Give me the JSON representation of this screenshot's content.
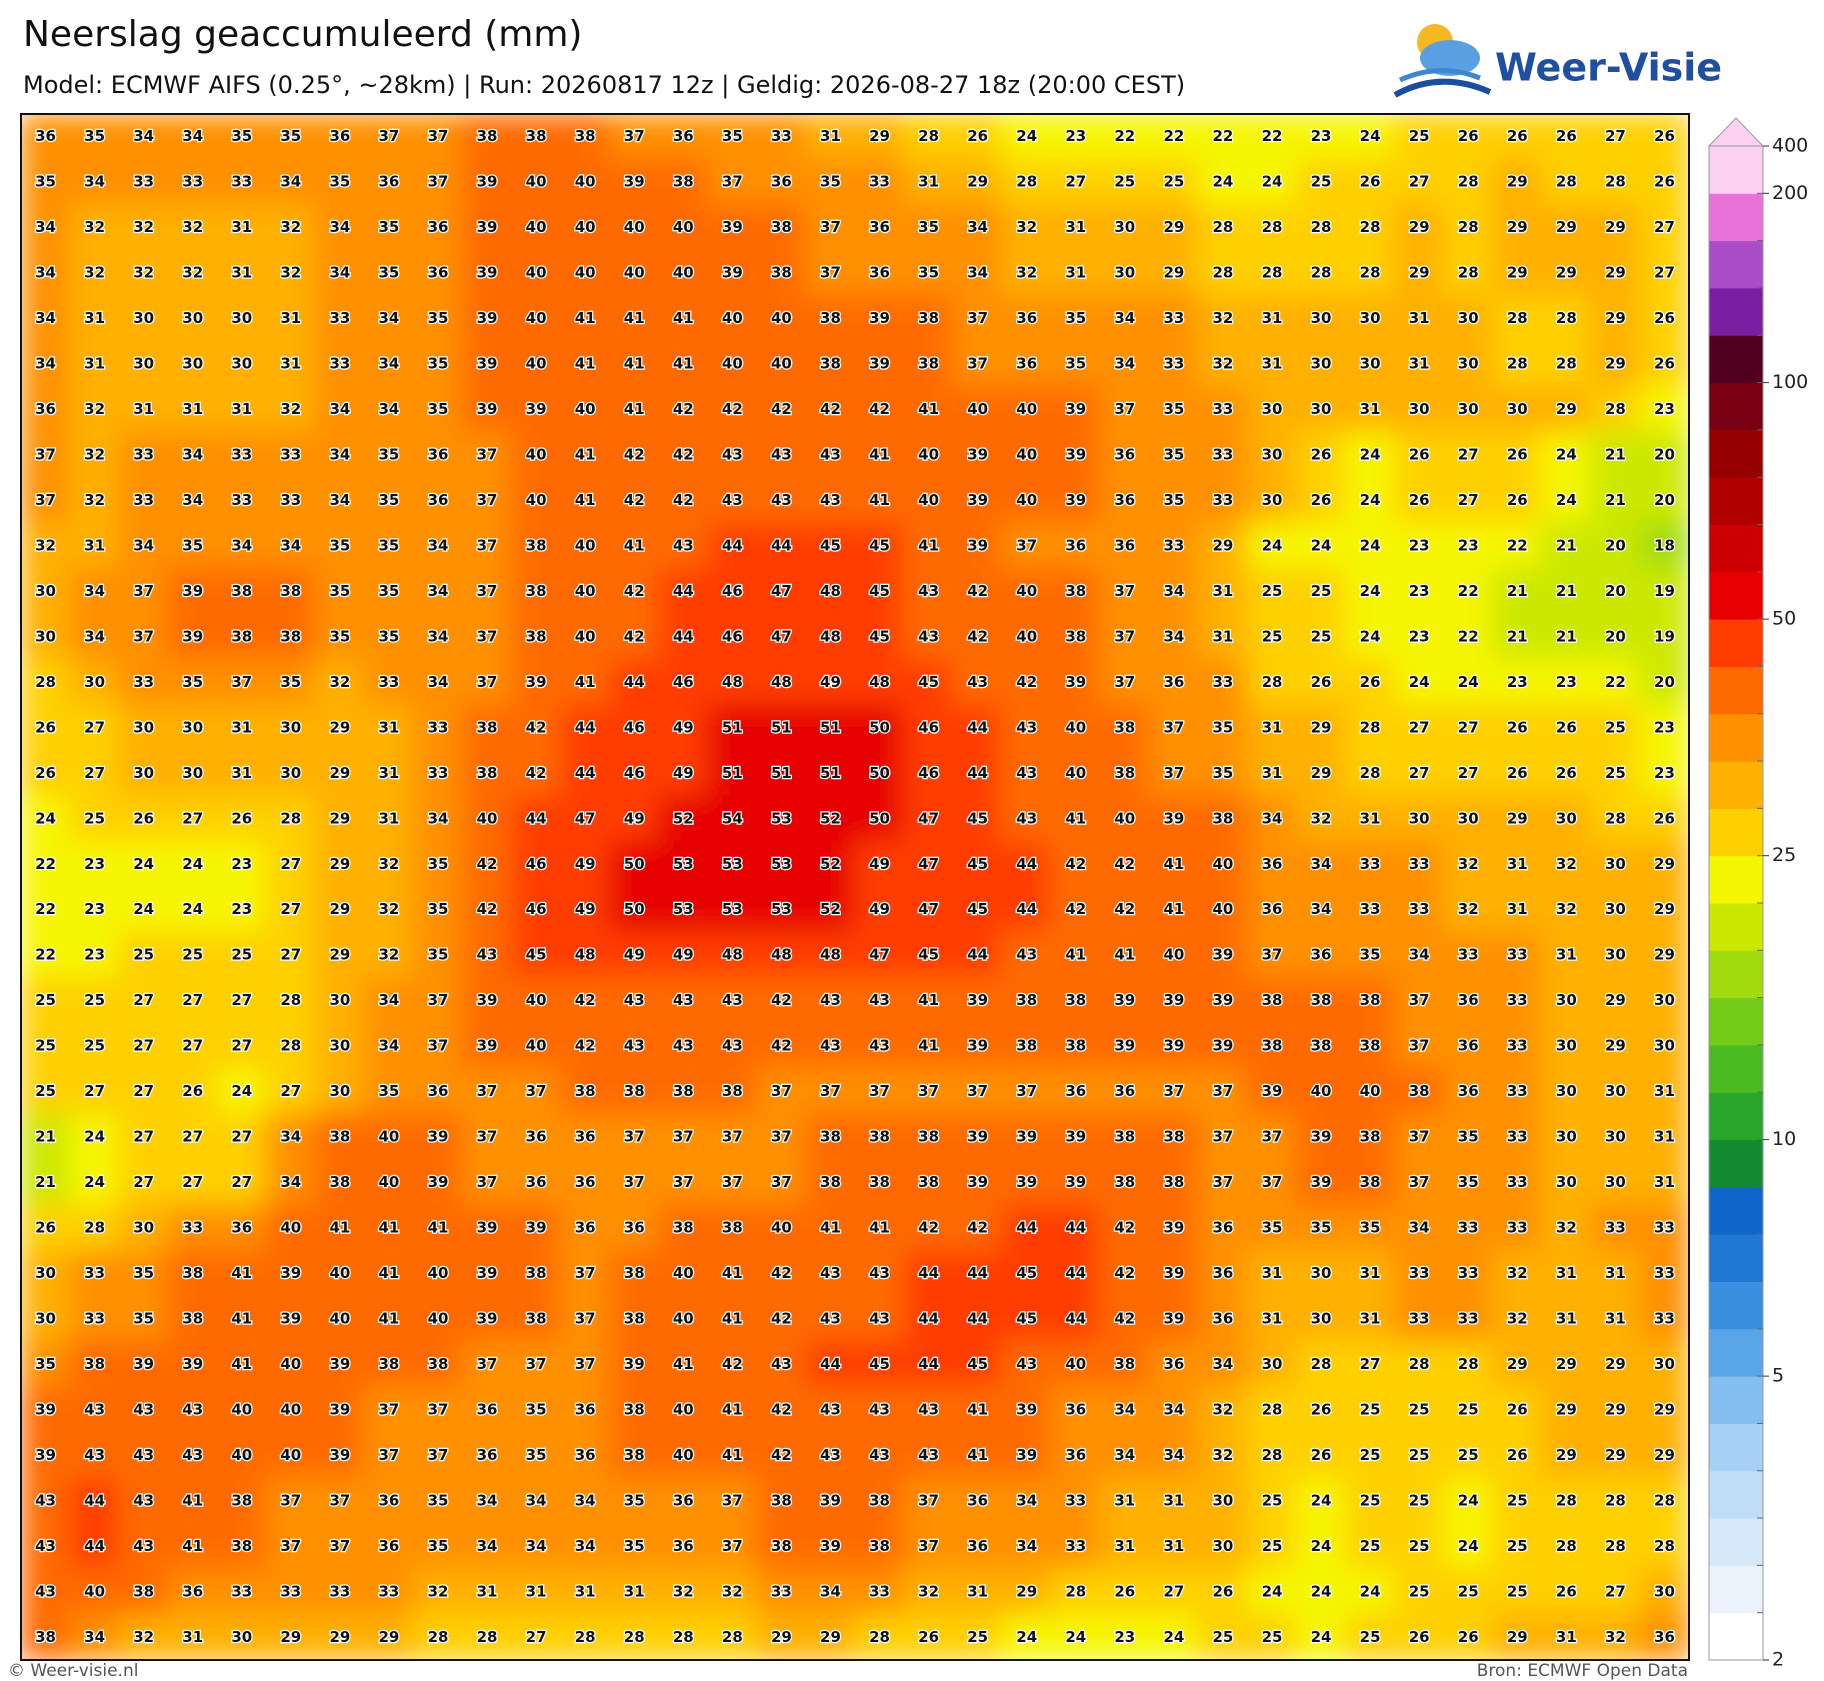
{
  "header": {
    "title": "Neerslag geaccumuleerd (mm)",
    "subtitle": "Model: ECMWF AIFS (0.25°, ~28km)  |  Run: 20260817 12z  |  Geldig: 2026-08-27 18z (20:00 CEST)"
  },
  "logo": {
    "text": "Weer-Visie"
  },
  "grid": {
    "rows": [
      [
        36,
        35,
        34,
        34,
        35,
        35,
        36,
        37,
        37,
        38,
        38,
        38,
        37,
        36,
        35,
        33,
        31,
        29,
        28,
        26,
        24,
        23,
        22,
        22,
        22,
        22,
        23,
        24,
        25,
        26,
        26,
        26,
        27,
        26
      ],
      [
        35,
        34,
        33,
        33,
        33,
        34,
        35,
        36,
        37,
        39,
        40,
        40,
        39,
        38,
        37,
        36,
        35,
        33,
        31,
        29,
        28,
        27,
        25,
        25,
        24,
        24,
        25,
        26,
        27,
        28,
        29,
        28,
        28,
        26
      ],
      [
        34,
        32,
        32,
        32,
        31,
        32,
        34,
        35,
        36,
        39,
        40,
        40,
        40,
        40,
        39,
        38,
        37,
        36,
        35,
        34,
        32,
        31,
        30,
        29,
        28,
        28,
        28,
        28,
        29,
        28,
        29,
        29,
        29,
        27
      ],
      [
        34,
        32,
        32,
        32,
        31,
        32,
        34,
        35,
        36,
        39,
        40,
        40,
        40,
        40,
        39,
        38,
        37,
        36,
        35,
        34,
        32,
        31,
        30,
        29,
        28,
        28,
        28,
        28,
        29,
        28,
        29,
        29,
        29,
        27
      ],
      [
        34,
        31,
        30,
        30,
        30,
        31,
        33,
        34,
        35,
        39,
        40,
        41,
        41,
        41,
        40,
        40,
        38,
        39,
        38,
        37,
        36,
        35,
        34,
        33,
        32,
        31,
        30,
        30,
        31,
        30,
        28,
        28,
        29,
        26
      ],
      [
        34,
        31,
        30,
        30,
        30,
        31,
        33,
        34,
        35,
        39,
        40,
        41,
        41,
        41,
        40,
        40,
        38,
        39,
        38,
        37,
        36,
        35,
        34,
        33,
        32,
        31,
        30,
        30,
        31,
        30,
        28,
        28,
        29,
        26
      ],
      [
        36,
        32,
        31,
        31,
        31,
        32,
        34,
        34,
        35,
        39,
        39,
        40,
        41,
        42,
        42,
        42,
        42,
        42,
        41,
        40,
        40,
        39,
        37,
        35,
        33,
        30,
        30,
        31,
        30,
        30,
        30,
        29,
        28,
        23
      ],
      [
        37,
        32,
        33,
        34,
        33,
        33,
        34,
        35,
        36,
        37,
        40,
        41,
        42,
        42,
        43,
        43,
        43,
        41,
        40,
        39,
        40,
        39,
        36,
        35,
        33,
        30,
        26,
        24,
        26,
        27,
        26,
        24,
        21,
        20
      ],
      [
        37,
        32,
        33,
        34,
        33,
        33,
        34,
        35,
        36,
        37,
        40,
        41,
        42,
        42,
        43,
        43,
        43,
        41,
        40,
        39,
        40,
        39,
        36,
        35,
        33,
        30,
        26,
        24,
        26,
        27,
        26,
        24,
        21,
        20
      ],
      [
        32,
        31,
        34,
        35,
        34,
        34,
        35,
        35,
        34,
        37,
        38,
        40,
        41,
        43,
        44,
        44,
        45,
        45,
        41,
        39,
        37,
        36,
        36,
        33,
        29,
        24,
        24,
        24,
        23,
        23,
        22,
        21,
        20,
        18
      ],
      [
        30,
        34,
        37,
        39,
        38,
        38,
        35,
        35,
        34,
        37,
        38,
        40,
        42,
        44,
        46,
        47,
        48,
        45,
        43,
        42,
        40,
        38,
        37,
        34,
        31,
        25,
        25,
        24,
        23,
        22,
        21,
        21,
        20,
        19
      ],
      [
        30,
        34,
        37,
        39,
        38,
        38,
        35,
        35,
        34,
        37,
        38,
        40,
        42,
        44,
        46,
        47,
        48,
        45,
        43,
        42,
        40,
        38,
        37,
        34,
        31,
        25,
        25,
        24,
        23,
        22,
        21,
        21,
        20,
        19
      ],
      [
        28,
        30,
        33,
        35,
        37,
        35,
        32,
        33,
        34,
        37,
        39,
        41,
        44,
        46,
        48,
        48,
        49,
        48,
        45,
        43,
        42,
        39,
        37,
        36,
        33,
        28,
        26,
        26,
        24,
        24,
        23,
        23,
        22,
        20
      ],
      [
        26,
        27,
        30,
        30,
        31,
        30,
        29,
        31,
        33,
        38,
        42,
        44,
        46,
        49,
        51,
        51,
        51,
        50,
        46,
        44,
        43,
        40,
        38,
        37,
        35,
        31,
        29,
        28,
        27,
        27,
        26,
        26,
        25,
        23
      ],
      [
        26,
        27,
        30,
        30,
        31,
        30,
        29,
        31,
        33,
        38,
        42,
        44,
        46,
        49,
        51,
        51,
        51,
        50,
        46,
        44,
        43,
        40,
        38,
        37,
        35,
        31,
        29,
        28,
        27,
        27,
        26,
        26,
        25,
        23
      ],
      [
        24,
        25,
        26,
        27,
        26,
        28,
        29,
        31,
        34,
        40,
        44,
        47,
        49,
        52,
        54,
        53,
        52,
        50,
        47,
        45,
        43,
        41,
        40,
        39,
        38,
        34,
        32,
        31,
        30,
        30,
        29,
        30,
        28,
        26
      ],
      [
        22,
        23,
        24,
        24,
        23,
        27,
        29,
        32,
        35,
        42,
        46,
        49,
        50,
        53,
        53,
        53,
        52,
        49,
        47,
        45,
        44,
        42,
        42,
        41,
        40,
        36,
        34,
        33,
        33,
        32,
        31,
        32,
        30,
        29
      ],
      [
        22,
        23,
        24,
        24,
        23,
        27,
        29,
        32,
        35,
        42,
        46,
        49,
        50,
        53,
        53,
        53,
        52,
        49,
        47,
        45,
        44,
        42,
        42,
        41,
        40,
        36,
        34,
        33,
        33,
        32,
        31,
        32,
        30,
        29
      ],
      [
        22,
        23,
        25,
        25,
        25,
        27,
        29,
        32,
        35,
        43,
        45,
        48,
        49,
        49,
        48,
        48,
        48,
        47,
        45,
        44,
        43,
        41,
        41,
        40,
        39,
        37,
        36,
        35,
        34,
        33,
        33,
        31,
        30,
        29
      ],
      [
        25,
        25,
        27,
        27,
        27,
        28,
        30,
        34,
        37,
        39,
        40,
        42,
        43,
        43,
        43,
        42,
        43,
        43,
        41,
        39,
        38,
        38,
        39,
        39,
        39,
        38,
        38,
        38,
        37,
        36,
        33,
        30,
        29,
        30
      ],
      [
        25,
        25,
        27,
        27,
        27,
        28,
        30,
        34,
        37,
        39,
        40,
        42,
        43,
        43,
        43,
        42,
        43,
        43,
        41,
        39,
        38,
        38,
        39,
        39,
        39,
        38,
        38,
        38,
        37,
        36,
        33,
        30,
        29,
        30
      ],
      [
        25,
        27,
        27,
        26,
        24,
        27,
        30,
        35,
        36,
        37,
        37,
        38,
        38,
        38,
        38,
        37,
        37,
        37,
        37,
        37,
        37,
        36,
        36,
        37,
        37,
        39,
        40,
        40,
        38,
        36,
        33,
        30,
        30,
        31
      ],
      [
        21,
        24,
        27,
        27,
        27,
        34,
        38,
        40,
        39,
        37,
        36,
        36,
        37,
        37,
        37,
        37,
        38,
        38,
        38,
        39,
        39,
        39,
        38,
        38,
        37,
        37,
        39,
        38,
        37,
        35,
        33,
        30,
        30,
        31
      ],
      [
        21,
        24,
        27,
        27,
        27,
        34,
        38,
        40,
        39,
        37,
        36,
        36,
        37,
        37,
        37,
        37,
        38,
        38,
        38,
        39,
        39,
        39,
        38,
        38,
        37,
        37,
        39,
        38,
        37,
        35,
        33,
        30,
        30,
        31
      ],
      [
        26,
        28,
        30,
        33,
        36,
        40,
        41,
        41,
        41,
        39,
        39,
        36,
        36,
        38,
        38,
        40,
        41,
        41,
        42,
        42,
        44,
        44,
        42,
        39,
        36,
        35,
        35,
        35,
        34,
        33,
        33,
        32,
        33,
        33
      ],
      [
        30,
        33,
        35,
        38,
        41,
        39,
        40,
        41,
        40,
        39,
        38,
        37,
        38,
        40,
        41,
        42,
        43,
        43,
        44,
        44,
        45,
        44,
        42,
        39,
        36,
        31,
        30,
        31,
        33,
        33,
        32,
        31,
        31,
        33
      ],
      [
        30,
        33,
        35,
        38,
        41,
        39,
        40,
        41,
        40,
        39,
        38,
        37,
        38,
        40,
        41,
        42,
        43,
        43,
        44,
        44,
        45,
        44,
        42,
        39,
        36,
        31,
        30,
        31,
        33,
        33,
        32,
        31,
        31,
        33
      ],
      [
        35,
        38,
        39,
        39,
        41,
        40,
        39,
        38,
        38,
        37,
        37,
        37,
        39,
        41,
        42,
        43,
        44,
        45,
        44,
        45,
        43,
        40,
        38,
        36,
        34,
        30,
        28,
        27,
        28,
        28,
        29,
        29,
        29,
        30
      ],
      [
        39,
        43,
        43,
        43,
        40,
        40,
        39,
        37,
        37,
        36,
        35,
        36,
        38,
        40,
        41,
        42,
        43,
        43,
        43,
        41,
        39,
        36,
        34,
        34,
        32,
        28,
        26,
        25,
        25,
        25,
        26,
        29,
        29,
        29
      ],
      [
        39,
        43,
        43,
        43,
        40,
        40,
        39,
        37,
        37,
        36,
        35,
        36,
        38,
        40,
        41,
        42,
        43,
        43,
        43,
        41,
        39,
        36,
        34,
        34,
        32,
        28,
        26,
        25,
        25,
        25,
        26,
        29,
        29,
        29
      ],
      [
        43,
        44,
        43,
        41,
        38,
        37,
        37,
        36,
        35,
        34,
        34,
        34,
        35,
        36,
        37,
        38,
        39,
        38,
        37,
        36,
        34,
        33,
        31,
        31,
        30,
        25,
        24,
        25,
        25,
        24,
        25,
        28,
        28,
        28
      ],
      [
        43,
        44,
        43,
        41,
        38,
        37,
        37,
        36,
        35,
        34,
        34,
        34,
        35,
        36,
        37,
        38,
        39,
        38,
        37,
        36,
        34,
        33,
        31,
        31,
        30,
        25,
        24,
        25,
        25,
        24,
        25,
        28,
        28,
        28
      ],
      [
        43,
        40,
        38,
        36,
        33,
        33,
        33,
        33,
        32,
        31,
        31,
        31,
        31,
        32,
        32,
        33,
        34,
        33,
        32,
        31,
        29,
        28,
        26,
        27,
        26,
        24,
        24,
        24,
        25,
        25,
        25,
        26,
        27,
        30
      ],
      [
        38,
        34,
        32,
        31,
        30,
        29,
        29,
        29,
        28,
        28,
        27,
        28,
        28,
        28,
        28,
        29,
        29,
        28,
        26,
        25,
        24,
        24,
        23,
        24,
        25,
        25,
        24,
        25,
        26,
        26,
        29,
        31,
        32,
        36
      ]
    ]
  },
  "colorbar": {
    "ticks": [
      2,
      5,
      10,
      25,
      50,
      100,
      200,
      400
    ],
    "colors": [
      "#ffffff",
      "#eaf3fc",
      "#d6e9fa",
      "#c0ddf8",
      "#a6d0f5",
      "#84bdf0",
      "#5aa5e8",
      "#3a8fe0",
      "#1f78d4",
      "#0f66c8",
      "#138a30",
      "#2aa62a",
      "#4cbb22",
      "#74cc18",
      "#a0dc10",
      "#cce800",
      "#f6f600",
      "#ffd000",
      "#ffb000",
      "#ff9000",
      "#ff6a00",
      "#ff3c00",
      "#e60000",
      "#cc0000",
      "#b00000",
      "#960000",
      "#780010",
      "#520020",
      "#7a1fa2",
      "#a84cc8",
      "#e872d8",
      "#fbd0f0"
    ]
  },
  "footer": {
    "left": "© Weer-visie.nl",
    "right": "Bron: ECMWF Open Data"
  }
}
